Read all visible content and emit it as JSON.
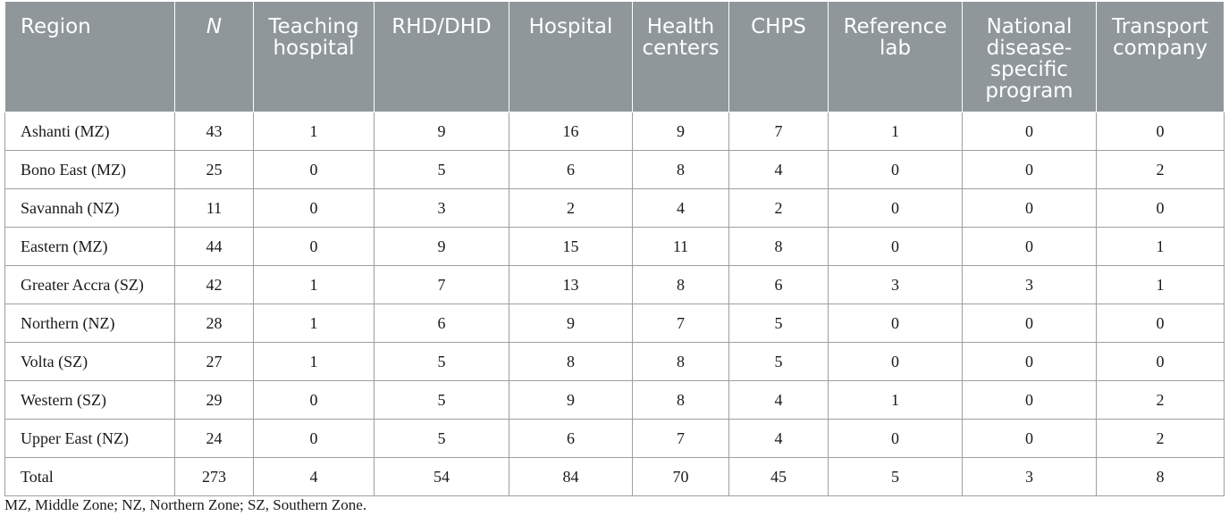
{
  "table": {
    "headers": [
      "Region",
      "N",
      "Teaching hospital",
      "RHD/DHD",
      "Hospital",
      "Health centers",
      "CHPS",
      "Reference lab",
      "National disease-specific program",
      "Transport company"
    ],
    "rows": [
      [
        "Ashanti (MZ)",
        "43",
        "1",
        "9",
        "16",
        "9",
        "7",
        "1",
        "0",
        "0"
      ],
      [
        "Bono East (MZ)",
        "25",
        "0",
        "5",
        "6",
        "8",
        "4",
        "0",
        "0",
        "2"
      ],
      [
        "Savannah (NZ)",
        "11",
        "0",
        "3",
        "2",
        "4",
        "2",
        "0",
        "0",
        "0"
      ],
      [
        "Eastern (MZ)",
        "44",
        "0",
        "9",
        "15",
        "11",
        "8",
        "0",
        "0",
        "1"
      ],
      [
        "Greater Accra (SZ)",
        "42",
        "1",
        "7",
        "13",
        "8",
        "6",
        "3",
        "3",
        "1"
      ],
      [
        "Northern (NZ)",
        "28",
        "1",
        "6",
        "9",
        "7",
        "5",
        "0",
        "0",
        "0"
      ],
      [
        "Volta (SZ)",
        "27",
        "1",
        "5",
        "8",
        "8",
        "5",
        "0",
        "0",
        "0"
      ],
      [
        "Western (SZ)",
        "29",
        "0",
        "5",
        "9",
        "8",
        "4",
        "1",
        "0",
        "2"
      ],
      [
        "Upper East (NZ)",
        "24",
        "0",
        "5",
        "6",
        "7",
        "4",
        "0",
        "0",
        "2"
      ],
      [
        "Total",
        "273",
        "4",
        "54",
        "84",
        "70",
        "45",
        "5",
        "3",
        "8"
      ]
    ]
  },
  "footnote": "MZ, Middle Zone; NZ, Northern Zone; SZ, Southern Zone.",
  "colors": {
    "header_background": "#8f979a",
    "header_text": "#ffffff",
    "grid_line": "#9aa0a3"
  }
}
